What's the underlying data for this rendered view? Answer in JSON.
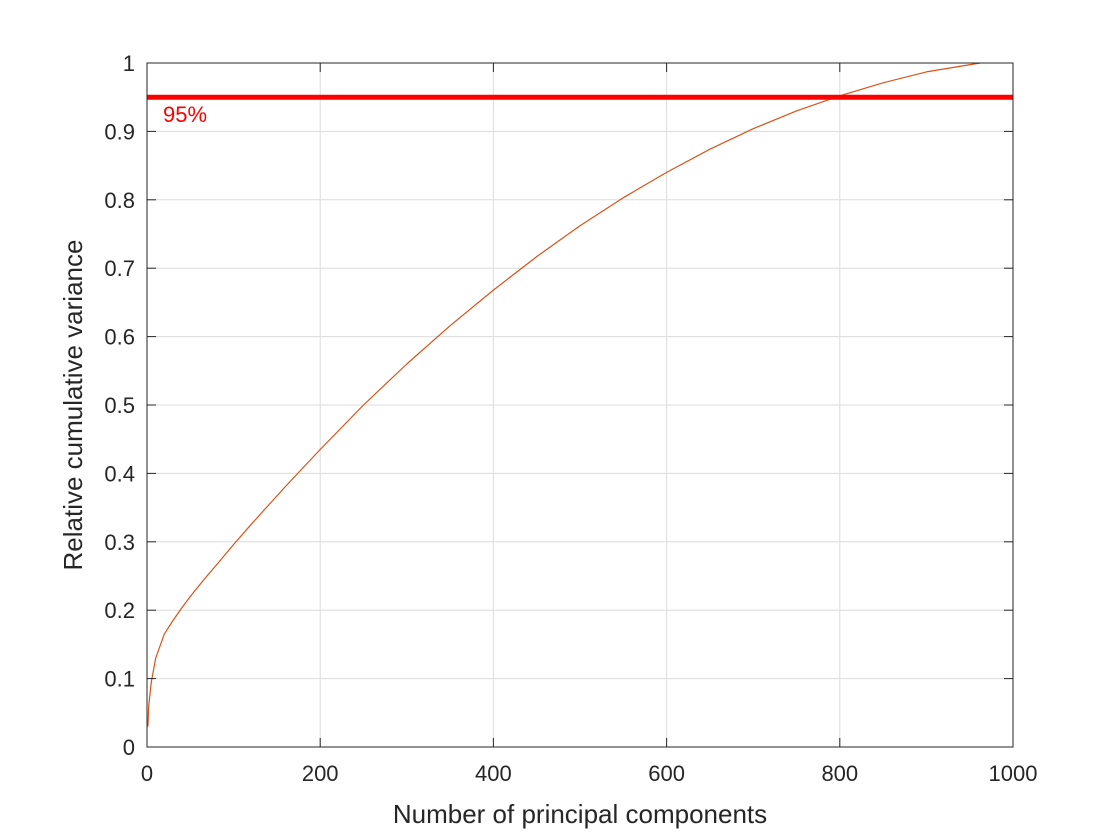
{
  "chart_data": {
    "type": "line",
    "title": "",
    "xlabel": "Number of principal components",
    "ylabel": "Relative cumulative variance",
    "xlim": [
      0,
      1000
    ],
    "ylim": [
      0,
      1
    ],
    "xticks": [
      0,
      200,
      400,
      600,
      800,
      1000
    ],
    "yticks": [
      0,
      0.1,
      0.2,
      0.3,
      0.4,
      0.5,
      0.6,
      0.7,
      0.8,
      0.9,
      1
    ],
    "xtick_labels": [
      "0",
      "200",
      "400",
      "600",
      "800",
      "1000"
    ],
    "ytick_labels": [
      "0",
      "0.1",
      "0.2",
      "0.3",
      "0.4",
      "0.5",
      "0.6",
      "0.7",
      "0.8",
      "0.9",
      "1"
    ],
    "grid": true,
    "series": [
      {
        "color": "#D95319",
        "x": [
          1,
          2,
          5,
          10,
          20,
          30,
          40,
          50,
          60,
          70,
          80,
          100,
          120,
          140,
          160,
          180,
          200,
          250,
          300,
          350,
          400,
          450,
          500,
          550,
          600,
          650,
          700,
          750,
          800,
          850,
          900,
          962
        ],
        "y": [
          0.03,
          0.06,
          0.095,
          0.13,
          0.165,
          0.185,
          0.203,
          0.22,
          0.236,
          0.251,
          0.266,
          0.296,
          0.325,
          0.353,
          0.381,
          0.408,
          0.435,
          0.5,
          0.56,
          0.616,
          0.668,
          0.717,
          0.762,
          0.803,
          0.84,
          0.874,
          0.904,
          0.93,
          0.952,
          0.971,
          0.987,
          1.0
        ]
      }
    ],
    "reference_line": {
      "orientation": "horizontal",
      "y": 0.95,
      "color": "#FF0000",
      "label": "95%"
    }
  }
}
